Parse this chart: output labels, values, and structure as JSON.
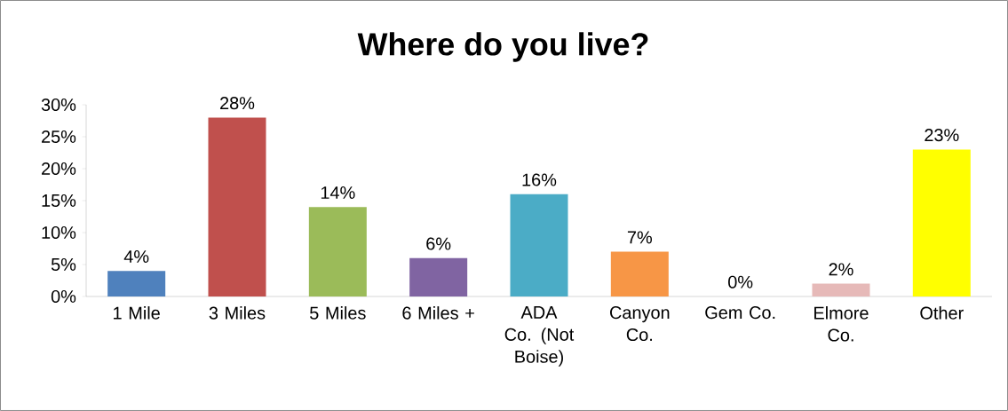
{
  "chart_data": {
    "type": "bar",
    "title": "Where do you live?",
    "categories": [
      "1 Mile",
      "3 Miles",
      "5 Miles",
      "6 Miles +",
      "ADA Co. (Not Boise)",
      "Canyon Co.",
      "Gem Co.",
      "Elmore Co.",
      "Other"
    ],
    "values": [
      4,
      28,
      14,
      6,
      16,
      7,
      0,
      2,
      23
    ],
    "value_labels": [
      "4%",
      "28%",
      "14%",
      "6%",
      "16%",
      "7%",
      "0%",
      "2%",
      "23%"
    ],
    "colors": [
      "#4f81bd",
      "#c0504d",
      "#9bbb59",
      "#8064a2",
      "#4bacc6",
      "#f79646",
      "#2c4d75",
      "#e6b9b8",
      "#ffff00"
    ],
    "ylim": [
      0,
      30
    ],
    "yticks": [
      {
        "value": 0,
        "label": "0%"
      },
      {
        "value": 5,
        "label": "5%"
      },
      {
        "value": 10,
        "label": "10%"
      },
      {
        "value": 15,
        "label": "15%"
      },
      {
        "value": 20,
        "label": "20%"
      },
      {
        "value": 25,
        "label": "25%"
      },
      {
        "value": 30,
        "label": "30%"
      }
    ],
    "grid": false
  }
}
